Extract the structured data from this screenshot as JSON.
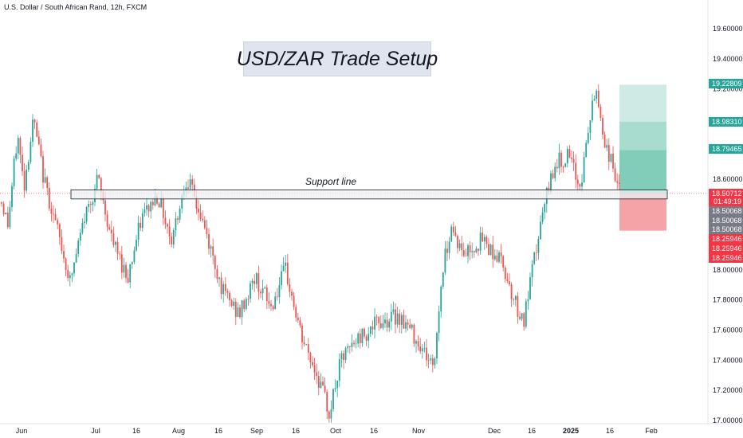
{
  "header": {
    "symbol_title": "U.S. Dollar / South African Rand, 12h, FXCM"
  },
  "annotations": {
    "setup_title": "USD/ZAR Trade Setup",
    "support_label": "Support line"
  },
  "colors": {
    "up": "#26a69a",
    "down": "#ef5350",
    "target_zone_1": "#cdeae4",
    "target_zone_2": "#a8dccf",
    "target_zone_3": "#82ccba",
    "stop_zone": "#f5a3a6",
    "current_price_line": "#f23645",
    "support_fill": "#eef0f3",
    "support_stroke": "#131722"
  },
  "chart_data": {
    "type": "candlestick",
    "title": "U.S. Dollar / South African Rand, 12h, FXCM",
    "x_tick_labels": [
      "Jun",
      "Jul",
      "16",
      "Aug",
      "16",
      "Sep",
      "16",
      "Oct",
      "16",
      "Nov",
      "Dec",
      "16",
      "2025",
      "16",
      "Feb"
    ],
    "y_tick_labels": [
      "19.60000",
      "19.40000",
      "19.20000",
      "18.60000",
      "18.00000",
      "17.80000",
      "17.60000",
      "17.40000",
      "17.20000",
      "17.00000"
    ],
    "ylim": [
      17.0,
      19.8
    ],
    "grid": false,
    "price_tags": [
      {
        "label": "19.22809",
        "kind": "target"
      },
      {
        "label": "18.98310",
        "kind": "target"
      },
      {
        "label": "18.79465",
        "kind": "target"
      },
      {
        "label": "18.50712",
        "kind": "current",
        "sub": "01:49:19"
      },
      {
        "label": "18.50068",
        "kind": "entry"
      },
      {
        "label": "18.50068",
        "kind": "entry"
      },
      {
        "label": "18.50068",
        "kind": "entry"
      },
      {
        "label": "18.25946",
        "kind": "stop"
      },
      {
        "label": "18.25946",
        "kind": "stop"
      },
      {
        "label": "18.25946",
        "kind": "stop"
      }
    ],
    "trade_setup": {
      "entry": 18.50068,
      "stop": 18.25946,
      "targets": [
        18.79465,
        18.9831,
        19.22809
      ],
      "current_price": 18.50712
    },
    "support_zone": {
      "low": 18.47,
      "high": 18.53
    },
    "key_points": [
      {
        "period": "Jun",
        "price": 18.45
      },
      {
        "period": "Jun",
        "price": 19.0
      },
      {
        "period": "Jul",
        "price": 18.6
      },
      {
        "period": "Aug",
        "price": 18.65
      },
      {
        "period": "Oct",
        "price": 17.05
      },
      {
        "period": "Nov",
        "price": 17.3
      },
      {
        "period": "Nov",
        "price": 18.3
      },
      {
        "period": "Dec",
        "price": 17.65
      },
      {
        "period": "Dec",
        "price": 18.8
      },
      {
        "period": "2025",
        "price": 19.2
      },
      {
        "period": "16",
        "price": 18.5
      }
    ]
  }
}
